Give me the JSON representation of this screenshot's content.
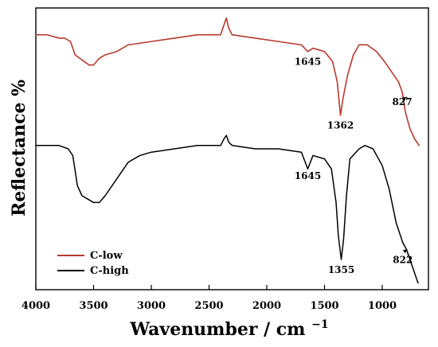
{
  "chart_data": {
    "type": "line",
    "x_label": "Wavenumber / cm",
    "x_label_superscript": "−1",
    "y_label": "Reflectance %",
    "x_ticks": [
      4000,
      3500,
      3000,
      2500,
      2000,
      1500,
      1000
    ],
    "xlim": [
      4000,
      600
    ],
    "grid": false,
    "legend_position": "bottom-left",
    "series": [
      {
        "name": "C-low",
        "color": "#b83a2c",
        "points": [
          [
            4000,
            0.72
          ],
          [
            3900,
            0.72
          ],
          [
            3800,
            0.71
          ],
          [
            3750,
            0.71
          ],
          [
            3700,
            0.7
          ],
          [
            3660,
            0.66
          ],
          [
            3620,
            0.65
          ],
          [
            3580,
            0.64
          ],
          [
            3540,
            0.63
          ],
          [
            3500,
            0.63
          ],
          [
            3450,
            0.65
          ],
          [
            3400,
            0.66
          ],
          [
            3300,
            0.67
          ],
          [
            3200,
            0.69
          ],
          [
            3000,
            0.7
          ],
          [
            2800,
            0.71
          ],
          [
            2600,
            0.72
          ],
          [
            2400,
            0.72
          ],
          [
            2370,
            0.75
          ],
          [
            2350,
            0.77
          ],
          [
            2330,
            0.74
          ],
          [
            2300,
            0.72
          ],
          [
            2100,
            0.71
          ],
          [
            1900,
            0.7
          ],
          [
            1700,
            0.69
          ],
          [
            1645,
            0.67
          ],
          [
            1600,
            0.68
          ],
          [
            1500,
            0.67
          ],
          [
            1430,
            0.64
          ],
          [
            1390,
            0.58
          ],
          [
            1362,
            0.48
          ],
          [
            1340,
            0.53
          ],
          [
            1300,
            0.6
          ],
          [
            1250,
            0.66
          ],
          [
            1200,
            0.69
          ],
          [
            1130,
            0.69
          ],
          [
            1050,
            0.67
          ],
          [
            980,
            0.64
          ],
          [
            920,
            0.61
          ],
          [
            860,
            0.58
          ],
          [
            827,
            0.55
          ],
          [
            800,
            0.49
          ],
          [
            760,
            0.44
          ],
          [
            720,
            0.41
          ],
          [
            680,
            0.39
          ]
        ]
      },
      {
        "name": "C-high",
        "color": "#000000",
        "points": [
          [
            4000,
            0.39
          ],
          [
            3900,
            0.39
          ],
          [
            3800,
            0.39
          ],
          [
            3720,
            0.38
          ],
          [
            3680,
            0.36
          ],
          [
            3640,
            0.27
          ],
          [
            3600,
            0.24
          ],
          [
            3550,
            0.23
          ],
          [
            3500,
            0.22
          ],
          [
            3450,
            0.22
          ],
          [
            3400,
            0.24
          ],
          [
            3300,
            0.29
          ],
          [
            3200,
            0.34
          ],
          [
            3100,
            0.36
          ],
          [
            3000,
            0.37
          ],
          [
            2800,
            0.38
          ],
          [
            2600,
            0.39
          ],
          [
            2400,
            0.39
          ],
          [
            2370,
            0.41
          ],
          [
            2350,
            0.42
          ],
          [
            2330,
            0.4
          ],
          [
            2300,
            0.39
          ],
          [
            2100,
            0.38
          ],
          [
            1900,
            0.38
          ],
          [
            1700,
            0.37
          ],
          [
            1645,
            0.32
          ],
          [
            1600,
            0.36
          ],
          [
            1500,
            0.35
          ],
          [
            1440,
            0.32
          ],
          [
            1400,
            0.22
          ],
          [
            1380,
            0.12
          ],
          [
            1355,
            0.05
          ],
          [
            1335,
            0.11
          ],
          [
            1310,
            0.24
          ],
          [
            1280,
            0.35
          ],
          [
            1200,
            0.38
          ],
          [
            1150,
            0.39
          ],
          [
            1080,
            0.38
          ],
          [
            1000,
            0.33
          ],
          [
            940,
            0.26
          ],
          [
            880,
            0.16
          ],
          [
            822,
            0.1
          ],
          [
            790,
            0.08
          ],
          [
            760,
            0.05
          ],
          [
            730,
            0.02
          ],
          [
            690,
            -0.02
          ]
        ]
      }
    ],
    "annotations": [
      {
        "label": "1645",
        "x": 1645,
        "series": "C-low",
        "y": 0.63
      },
      {
        "label": "1362",
        "x": 1362,
        "series": "C-low",
        "y": 0.44
      },
      {
        "label": "827",
        "x": 827,
        "series": "C-low",
        "y": 0.51
      },
      {
        "label": "1645",
        "x": 1645,
        "series": "C-high",
        "y": 0.29
      },
      {
        "label": "1355",
        "x": 1355,
        "series": "C-high",
        "y": 0.01
      },
      {
        "label": "822",
        "x": 822,
        "series": "C-high",
        "y": 0.04
      }
    ]
  }
}
